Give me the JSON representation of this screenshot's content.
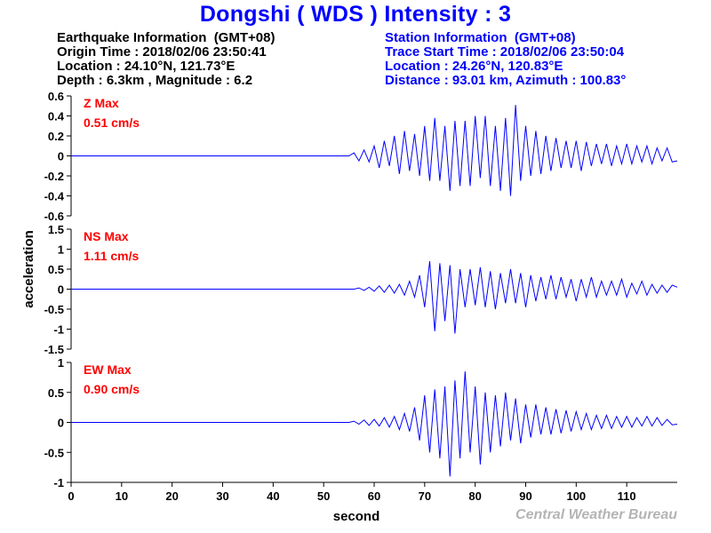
{
  "header": {
    "title": "Dongshi ( WDS ) Intensity : 3"
  },
  "earthquake_info": {
    "heading": "Earthquake Information  (GMT+08)",
    "origin_time": "Origin Time : 2018/02/06 23:50:41",
    "location": "Location : 24.10°N, 121.73°E",
    "depth_magnitude": "Depth : 6.3km , Magnitude : 6.2"
  },
  "station_info": {
    "heading": "Station Information  (GMT+08)",
    "trace_start": "Trace Start Time : 2018/02/06 23:50:04",
    "location": "Location : 24.26°N, 120.83°E",
    "distance_azimuth": "Distance : 93.01 km, Azimuth : 100.83°"
  },
  "footer": {
    "credit": "Central Weather Bureau"
  },
  "colors": {
    "trace": "#0000ff",
    "max_label": "#ff0000",
    "title": "#0000ff",
    "credit": "#b4b4b4"
  },
  "chart_data": [
    {
      "type": "line",
      "component": "Z",
      "max_label": "Z Max",
      "max_value": "0.51 cm/s",
      "ylim": [
        -0.6,
        0.6
      ],
      "yticks": [
        0.6,
        0.4,
        0.2,
        0,
        -0.2,
        -0.4,
        -0.6
      ],
      "ytick_labels": [
        "0.6",
        "0.4",
        "0.2",
        "0",
        "-0.2",
        "-0.4",
        "-0.6"
      ],
      "xlim": [
        0,
        120
      ],
      "series": [
        {
          "x": [
            0,
            55,
            56,
            57,
            58,
            59,
            60,
            61,
            62,
            63,
            64,
            65,
            66,
            67,
            68,
            69,
            70,
            71,
            72,
            73,
            74,
            75,
            76,
            77,
            78,
            79,
            80,
            81,
            82,
            83,
            84,
            85,
            86,
            87,
            88,
            89,
            90,
            91,
            92,
            93,
            94,
            95,
            96,
            97,
            98,
            99,
            100,
            101,
            102,
            103,
            104,
            105,
            106,
            107,
            108,
            109,
            110,
            111,
            112,
            113,
            114,
            115,
            116,
            117,
            118,
            119,
            120
          ],
          "y": [
            0,
            0,
            0.03,
            -0.05,
            0.06,
            -0.06,
            0.1,
            -0.12,
            0.15,
            -0.1,
            0.2,
            -0.18,
            0.25,
            -0.15,
            0.22,
            -0.2,
            0.3,
            -0.25,
            0.38,
            -0.25,
            0.3,
            -0.35,
            0.35,
            -0.3,
            0.35,
            -0.3,
            0.4,
            -0.22,
            0.4,
            -0.3,
            0.3,
            -0.35,
            0.38,
            -0.4,
            0.51,
            -0.25,
            0.3,
            -0.2,
            0.25,
            -0.18,
            0.2,
            -0.15,
            0.18,
            -0.12,
            0.15,
            -0.12,
            0.15,
            -0.15,
            0.14,
            -0.1,
            0.12,
            -0.08,
            0.12,
            -0.1,
            0.1,
            -0.08,
            0.12,
            -0.08,
            0.1,
            -0.06,
            0.1,
            -0.08,
            0.08,
            -0.05,
            0.08,
            -0.06,
            -0.05
          ]
        }
      ]
    },
    {
      "type": "line",
      "component": "NS",
      "max_label": "NS Max",
      "max_value": "1.11 cm/s",
      "ylim": [
        -1.5,
        1.5
      ],
      "yticks": [
        1.5,
        1,
        0.5,
        0,
        -0.5,
        -1,
        -1.5
      ],
      "ytick_labels": [
        "1.5",
        "1",
        "0.5",
        "0",
        "-0.5",
        "-1",
        "-1.5"
      ],
      "xlim": [
        0,
        120
      ],
      "series": [
        {
          "x": [
            0,
            56,
            57,
            58,
            59,
            60,
            61,
            62,
            63,
            64,
            65,
            66,
            67,
            68,
            69,
            70,
            71,
            72,
            73,
            74,
            75,
            76,
            77,
            78,
            79,
            80,
            81,
            82,
            83,
            84,
            85,
            86,
            87,
            88,
            89,
            90,
            91,
            92,
            93,
            94,
            95,
            96,
            97,
            98,
            99,
            100,
            101,
            102,
            103,
            104,
            105,
            106,
            107,
            108,
            109,
            110,
            111,
            112,
            113,
            114,
            115,
            116,
            117,
            118,
            119,
            120
          ],
          "y": [
            0,
            0,
            0.03,
            -0.03,
            0.05,
            -0.05,
            0.08,
            -0.08,
            0.1,
            -0.1,
            0.12,
            -0.15,
            0.2,
            -0.2,
            0.35,
            -0.45,
            0.7,
            -1.05,
            0.65,
            -0.8,
            0.6,
            -1.11,
            0.5,
            -0.45,
            0.5,
            -0.4,
            0.55,
            -0.45,
            0.45,
            -0.5,
            0.4,
            -0.35,
            0.5,
            -0.35,
            0.4,
            -0.45,
            0.35,
            -0.3,
            0.3,
            -0.25,
            0.35,
            -0.25,
            0.3,
            -0.2,
            0.25,
            -0.3,
            0.25,
            -0.2,
            0.3,
            -0.2,
            0.2,
            -0.15,
            0.2,
            -0.15,
            0.25,
            -0.2,
            0.15,
            -0.12,
            0.2,
            -0.15,
            0.12,
            -0.1,
            0.1,
            -0.08,
            0.1,
            0.05
          ]
        }
      ]
    },
    {
      "type": "line",
      "component": "EW",
      "max_label": "EW Max",
      "max_value": "0.90 cm/s",
      "ylim": [
        -1,
        1
      ],
      "yticks": [
        1,
        0.5,
        0,
        -0.5,
        -1
      ],
      "ytick_labels": [
        "1",
        "0.5",
        "0",
        "-0.5",
        "-1"
      ],
      "xlim": [
        0,
        120
      ],
      "series": [
        {
          "x": [
            0,
            55,
            56,
            57,
            58,
            59,
            60,
            61,
            62,
            63,
            64,
            65,
            66,
            67,
            68,
            69,
            70,
            71,
            72,
            73,
            74,
            75,
            76,
            77,
            78,
            79,
            80,
            81,
            82,
            83,
            84,
            85,
            86,
            87,
            88,
            89,
            90,
            91,
            92,
            93,
            94,
            95,
            96,
            97,
            98,
            99,
            100,
            101,
            102,
            103,
            104,
            105,
            106,
            107,
            108,
            109,
            110,
            111,
            112,
            113,
            114,
            115,
            116,
            117,
            118,
            119,
            120
          ],
          "y": [
            0,
            0,
            0.02,
            -0.03,
            0.04,
            -0.05,
            0.05,
            -0.06,
            0.08,
            -0.08,
            0.1,
            -0.12,
            0.15,
            -0.15,
            0.25,
            -0.3,
            0.45,
            -0.5,
            0.55,
            -0.6,
            0.6,
            -0.9,
            0.7,
            -0.6,
            0.85,
            -0.5,
            0.6,
            -0.7,
            0.5,
            -0.5,
            0.45,
            -0.4,
            0.5,
            -0.3,
            0.4,
            -0.35,
            0.3,
            -0.25,
            0.3,
            -0.2,
            0.25,
            -0.2,
            0.22,
            -0.18,
            0.2,
            -0.15,
            0.18,
            -0.12,
            0.15,
            -0.12,
            0.12,
            -0.1,
            0.12,
            -0.1,
            0.1,
            -0.08,
            0.1,
            -0.08,
            0.08,
            -0.06,
            0.1,
            -0.06,
            0.08,
            -0.05,
            0.05,
            -0.04,
            -0.03
          ]
        }
      ]
    }
  ],
  "shared_axis": {
    "xticks": [
      0,
      10,
      20,
      30,
      40,
      50,
      60,
      70,
      80,
      90,
      100,
      110
    ],
    "xlabel": "second",
    "ylabel": "acceleration"
  }
}
